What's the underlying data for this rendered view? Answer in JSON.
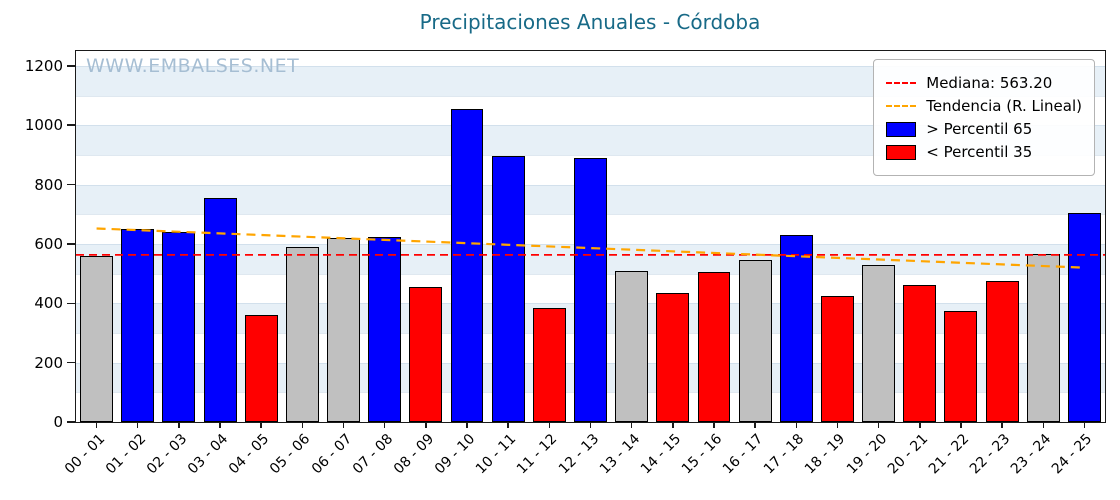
{
  "watermark": "WWW.EMBALSES.NET",
  "legend": {
    "median": "Mediana: 563.20",
    "trend": "Tendencia (R. Lineal)",
    "p65": "> Percentil 65",
    "p35": "< Percentil 35"
  },
  "colors": {
    "title": "#186a87",
    "watermark": "#a6bed3",
    "p65": "#0000ff",
    "p35": "#ff0000",
    "mid": "#c0c0c0",
    "median_line": "#ff0000",
    "trend_line": "#ffa500",
    "band": "#e7f0f7"
  },
  "chart_data": {
    "type": "bar",
    "title": "Precipitaciones Anuales - Córdoba",
    "categories": [
      "00 - 01",
      "01 - 02",
      "02 - 03",
      "03 - 04",
      "04 - 05",
      "05 - 06",
      "06 - 07",
      "07 - 08",
      "08 - 09",
      "09 - 10",
      "10 - 11",
      "11 - 12",
      "12 - 13",
      "13 - 14",
      "14 - 15",
      "15 - 16",
      "16 - 17",
      "17 - 18",
      "18 - 19",
      "19 - 20",
      "20 - 21",
      "21 - 22",
      "22 - 23",
      "23 - 24",
      "24 - 25"
    ],
    "values": [
      560,
      650,
      640,
      755,
      360,
      590,
      620,
      625,
      455,
      1055,
      895,
      385,
      890,
      510,
      435,
      505,
      545,
      630,
      425,
      530,
      460,
      375,
      475,
      565,
      705
    ],
    "bar_classes": [
      "mid",
      "p65",
      "p65",
      "p65",
      "p35",
      "mid",
      "mid",
      "p65",
      "p35",
      "p65",
      "p65",
      "p35",
      "p65",
      "mid",
      "p35",
      "p35",
      "mid",
      "p65",
      "p35",
      "mid",
      "p35",
      "p35",
      "p35",
      "mid",
      "p65"
    ],
    "median": 563.2,
    "trend": {
      "start": 652,
      "end": 520
    },
    "ylim": [
      0,
      1250
    ],
    "yticks": [
      0,
      200,
      400,
      600,
      800,
      1000,
      1200
    ],
    "xlabel": "",
    "ylabel": "",
    "legend_position": "upper right",
    "grid": "horizontal-bands"
  }
}
